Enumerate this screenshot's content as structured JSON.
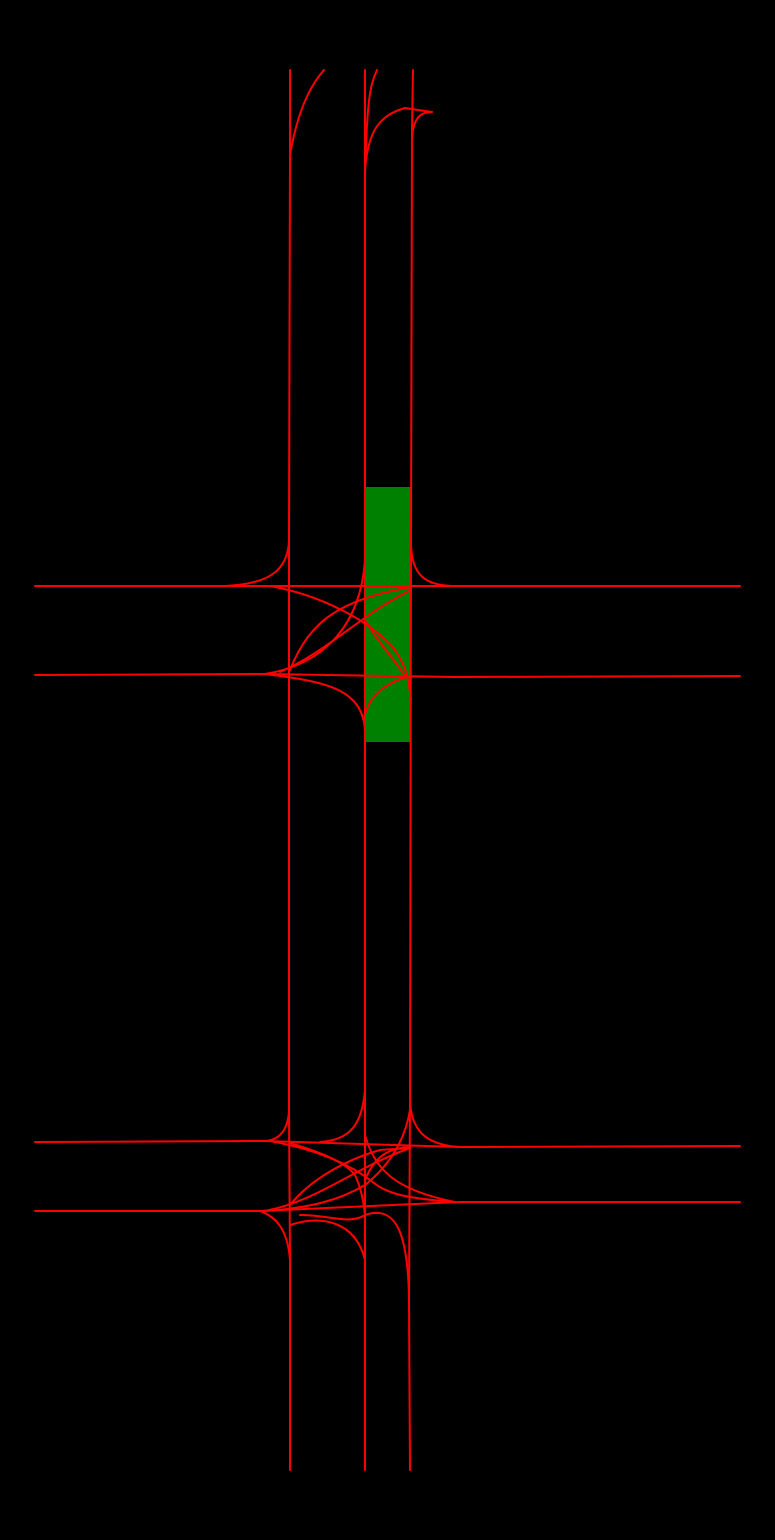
{
  "map": {
    "background_color": "#000000",
    "lane_color": "#ff0000",
    "highlight_color": "#008000",
    "highlighted_region": "lane-segment-right-vertical-upper-intersection",
    "roads": [
      {
        "id": "vertical-road-left",
        "orientation": "vertical"
      },
      {
        "id": "vertical-road-middle",
        "orientation": "vertical"
      },
      {
        "id": "vertical-road-right",
        "orientation": "vertical"
      },
      {
        "id": "horizontal-road-1",
        "orientation": "horizontal"
      },
      {
        "id": "horizontal-road-2",
        "orientation": "horizontal"
      },
      {
        "id": "horizontal-road-3",
        "orientation": "horizontal"
      },
      {
        "id": "horizontal-road-4",
        "orientation": "horizontal"
      }
    ],
    "intersections": [
      {
        "id": "upper-intersection"
      },
      {
        "id": "lower-intersection"
      }
    ]
  }
}
